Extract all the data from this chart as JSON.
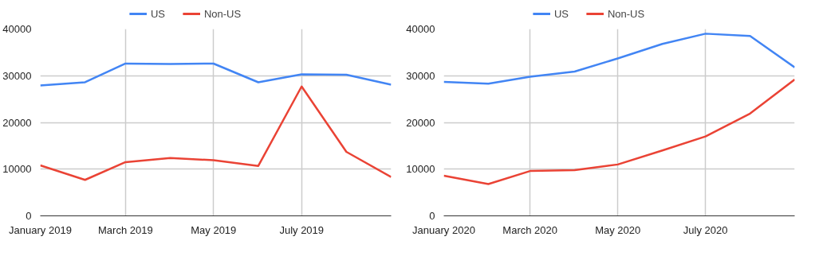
{
  "chart_data": [
    {
      "type": "line",
      "x": [
        "2019-01",
        "2019-02",
        "2019-03",
        "2019-04",
        "2019-05",
        "2019-06",
        "2019-07",
        "2019-08",
        "2019-09"
      ],
      "xlim": [
        "2019-01",
        "2019-09"
      ],
      "xticks": [
        {
          "value": "2019-01",
          "label": "January 2019"
        },
        {
          "value": "2019-03",
          "label": "March 2019"
        },
        {
          "value": "2019-05",
          "label": "May 2019"
        },
        {
          "value": "2019-07",
          "label": "July 2019"
        }
      ],
      "ylim": [
        0,
        40000
      ],
      "yticks": [
        0,
        10000,
        20000,
        30000,
        40000
      ],
      "grid": true,
      "legend": "top",
      "marker": "none",
      "line_style": "solid",
      "series": [
        {
          "name": "US",
          "color": "#4285f4",
          "values": [
            27900,
            28600,
            32600,
            32500,
            32600,
            28600,
            30300,
            30200,
            28100
          ]
        },
        {
          "name": "Non-US",
          "color": "#ea4335",
          "values": [
            10800,
            7700,
            11500,
            12400,
            11900,
            10700,
            27700,
            13700,
            8300
          ]
        }
      ]
    },
    {
      "type": "line",
      "x": [
        "2020-01",
        "2020-02",
        "2020-03",
        "2020-04",
        "2020-05",
        "2020-06",
        "2020-07",
        "2020-08",
        "2020-09"
      ],
      "xlim": [
        "2020-01",
        "2020-09"
      ],
      "xticks": [
        {
          "value": "2020-01",
          "label": "January 2020"
        },
        {
          "value": "2020-03",
          "label": "March 2020"
        },
        {
          "value": "2020-05",
          "label": "May 2020"
        },
        {
          "value": "2020-07",
          "label": "July 2020"
        }
      ],
      "ylim": [
        0,
        40000
      ],
      "yticks": [
        0,
        10000,
        20000,
        30000,
        40000
      ],
      "grid": true,
      "legend": "top",
      "marker": "none",
      "line_style": "solid",
      "series": [
        {
          "name": "US",
          "color": "#4285f4",
          "values": [
            28700,
            28300,
            29800,
            30900,
            33700,
            36800,
            39000,
            38500,
            31800
          ]
        },
        {
          "name": "Non-US",
          "color": "#ea4335",
          "values": [
            8600,
            6800,
            9600,
            9800,
            11000,
            14000,
            17000,
            21900,
            29200
          ]
        }
      ]
    }
  ]
}
